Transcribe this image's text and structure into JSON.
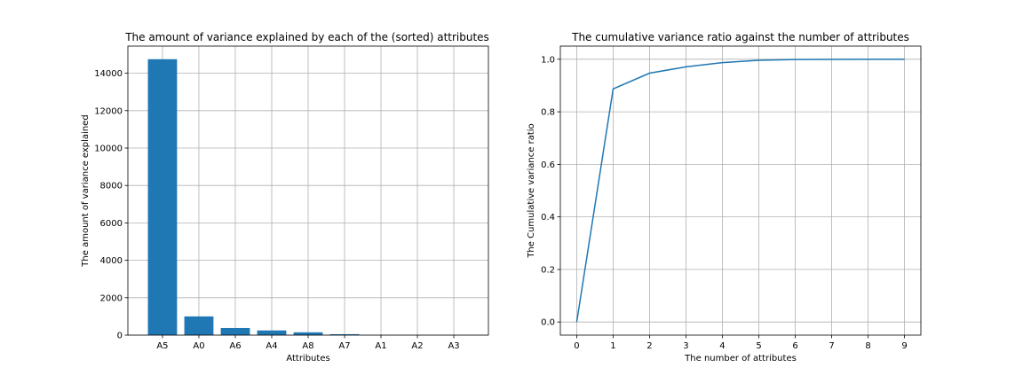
{
  "chart_data": [
    {
      "type": "bar",
      "title": "The amount of variance explained by each of the (sorted) attributes",
      "xlabel": "Attributes",
      "ylabel": "The amount of variance explained",
      "categories": [
        "A5",
        "A0",
        "A6",
        "A4",
        "A8",
        "A7",
        "A1",
        "A2",
        "A3"
      ],
      "values": [
        14750,
        1000,
        380,
        250,
        150,
        50,
        8,
        4,
        2
      ],
      "ylim": [
        0,
        15450
      ],
      "yticks": [
        0,
        2000,
        4000,
        6000,
        8000,
        10000,
        12000,
        14000
      ],
      "grid": true,
      "color": "#1f77b4"
    },
    {
      "type": "line",
      "title": "The cumulative variance ratio against the number of attributes",
      "xlabel": "The number of attributes",
      "ylabel": "The Cumulative variance ratio",
      "x": [
        0,
        1,
        2,
        3,
        4,
        5,
        6,
        7,
        8,
        9
      ],
      "y": [
        0.0,
        0.887,
        0.947,
        0.971,
        0.987,
        0.996,
        0.999,
        0.9995,
        0.9998,
        1.0
      ],
      "xlim": [
        -0.45,
        9.45
      ],
      "ylim": [
        -0.05,
        1.05
      ],
      "xticks": [
        0,
        1,
        2,
        3,
        4,
        5,
        6,
        7,
        8,
        9
      ],
      "yticks": [
        "0.0",
        "0.2",
        "0.4",
        "0.6",
        "0.8",
        "1.0"
      ],
      "grid": true,
      "color": "#1f77b4"
    }
  ]
}
